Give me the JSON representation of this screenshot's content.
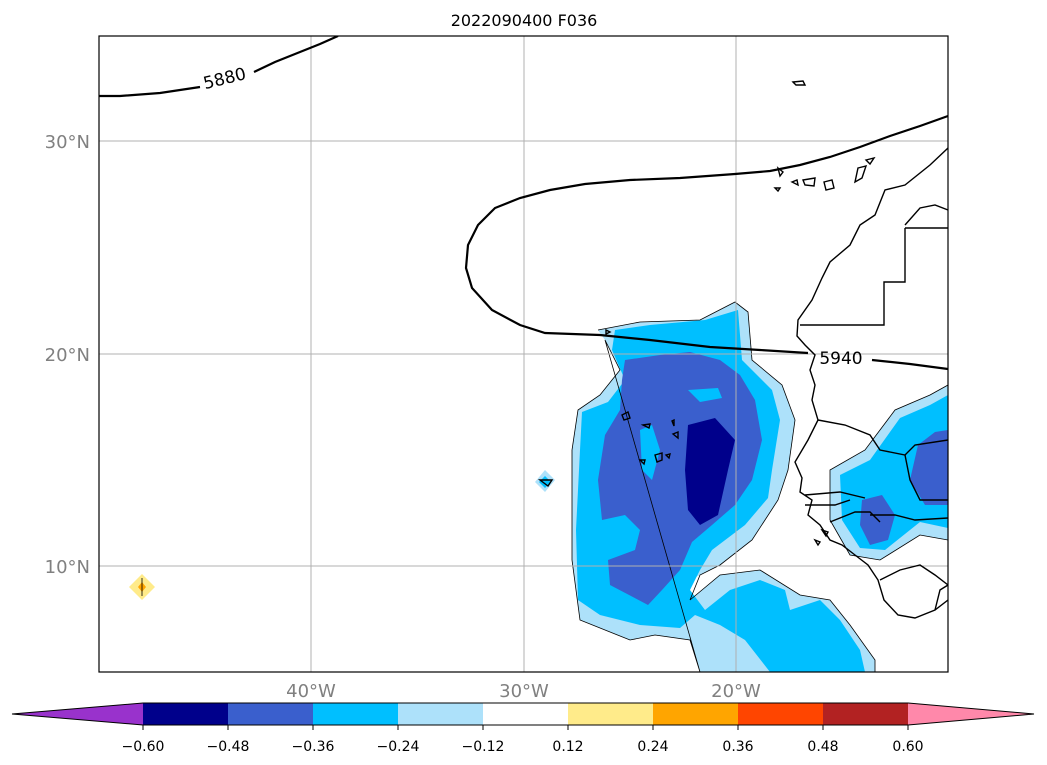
{
  "title": "2022090400 F036",
  "map": {
    "lon_range": [
      -49,
      -9
    ],
    "lat_range": [
      5,
      35
    ],
    "x_tick_labels": [
      "40°W",
      "30°W",
      "20°W"
    ],
    "y_tick_labels": [
      "30°N",
      "20°N",
      "10°N"
    ],
    "grid": true
  },
  "contour_labels": {
    "c5880": "5880",
    "c5940": "5940"
  },
  "colorbar": {
    "tick_labels": [
      "−0.60",
      "−0.48",
      "−0.36",
      "−0.24",
      "−0.12",
      "0.12",
      "0.24",
      "0.36",
      "0.48",
      "0.60"
    ],
    "colors": [
      "#9932CC",
      "#00008B",
      "#3A5FCD",
      "#00BFFF",
      "#ADE1FA",
      "#FFFFFF",
      "#FFEB8A",
      "#FFA500",
      "#FF4500",
      "#B22222",
      "#FF88AA"
    ],
    "extend": "both"
  }
}
